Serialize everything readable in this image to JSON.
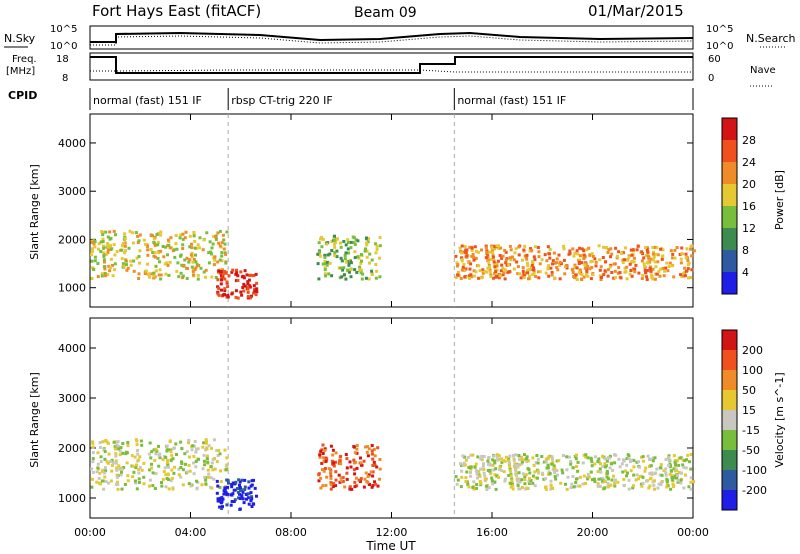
{
  "header": {
    "title": "Fort Hays East (fitACF)",
    "beam": "Beam 09",
    "date": "01/Mar/2015"
  },
  "top_panels": {
    "nsky_label": "N.Sky",
    "nsky_ticks": [
      "10^5",
      "10^0"
    ],
    "nsearch_label": "N.Search",
    "nsearch_ticks": [
      "10^5",
      "10^0"
    ],
    "freq_label_1": "Freq.",
    "freq_label_2": "[MHz]",
    "freq_ticks": [
      "18",
      "8"
    ],
    "nave_label": "Nave",
    "nave_ticks": [
      "60",
      "0"
    ],
    "cpid_label": "CPID",
    "cpid_segments": [
      {
        "label": "normal (fast) 151 IF",
        "start": 0,
        "end": 5.5
      },
      {
        "label": "rbsp CT-trig 220 IF",
        "start": 5.5,
        "end": 14.5
      },
      {
        "label": "normal (fast) 151 IF",
        "start": 14.5,
        "end": 24
      }
    ]
  },
  "chart_data": [
    {
      "type": "heatmap",
      "name": "power",
      "ylabel": "Slant Range [km]",
      "yticks": [
        "1000",
        "2000",
        "3000",
        "4000"
      ],
      "ylim": [
        600,
        4600
      ],
      "colorbar_label": "Power [dB]",
      "colorbar_ticks": [
        "4",
        "8",
        "12",
        "16",
        "20",
        "24",
        "28"
      ],
      "colors": [
        "#1e1ee6",
        "#2d5aa0",
        "#3c8c50",
        "#78be3c",
        "#e6c832",
        "#f08c28",
        "#f0501e",
        "#d21414"
      ],
      "scatter_bands": [
        {
          "x": [
            0.0,
            5.4
          ],
          "y": [
            1200,
            2200
          ],
          "level": 4
        },
        {
          "x": [
            5.0,
            6.6
          ],
          "y": [
            800,
            1400
          ],
          "level": 7
        },
        {
          "x": [
            9.0,
            11.5
          ],
          "y": [
            1200,
            2100
          ],
          "level": 3
        },
        {
          "x": [
            14.5,
            24.0
          ],
          "y": [
            1200,
            1900
          ],
          "level": 5
        }
      ]
    },
    {
      "type": "heatmap",
      "name": "velocity",
      "ylabel": "Slant Range [km]",
      "yticks": [
        "1000",
        "2000",
        "3000",
        "4000"
      ],
      "ylim": [
        600,
        4600
      ],
      "colorbar_label": "Velocity [m s^-1]",
      "colorbar_ticks": [
        "200",
        "100",
        "50",
        "15",
        "-15",
        "-50",
        "-100",
        "-200"
      ],
      "colors": [
        "#1e1ee6",
        "#2d5aa0",
        "#3c8c50",
        "#78be3c",
        "#c8c8c0",
        "#e6c832",
        "#f08c28",
        "#f0501e",
        "#d21414"
      ],
      "scatter_bands": [
        {
          "x": [
            0.0,
            5.4
          ],
          "y": [
            1200,
            2200
          ],
          "level": 4
        },
        {
          "x": [
            5.0,
            6.6
          ],
          "y": [
            800,
            1400
          ],
          "level": 0
        },
        {
          "x": [
            9.0,
            11.5
          ],
          "y": [
            1200,
            2100
          ],
          "level": 7
        },
        {
          "x": [
            14.5,
            24.0
          ],
          "y": [
            1200,
            1900
          ],
          "level": 4
        }
      ]
    }
  ],
  "xaxis": {
    "label": "Time UT",
    "ticks": [
      "00:00",
      "04:00",
      "08:00",
      "12:00",
      "16:00",
      "20:00",
      "00:00"
    ],
    "range": [
      0,
      24
    ]
  }
}
